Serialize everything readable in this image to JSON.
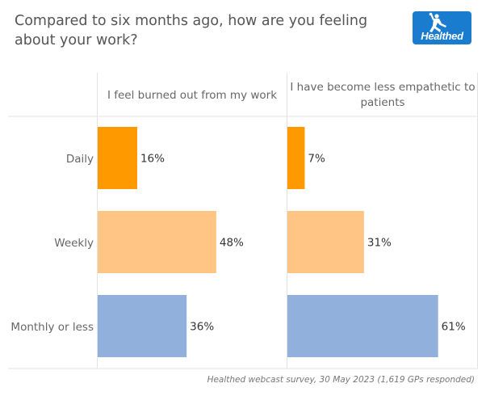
{
  "title": "Compared to six months ago, how are you feeling about your work?",
  "title_lines": [
    "Compared to six months ago, how are you feeling",
    "about your work?"
  ],
  "logo": {
    "text": "Healthed",
    "color": "#1a7ccf"
  },
  "footer": "Healthed webcast survey, 30 May 2023 (1,619 GPs responded)",
  "chart_data": {
    "type": "bar",
    "orientation": "horizontal",
    "title": "Compared to six months ago, how are you feeling about your work?",
    "categories": [
      "Daily",
      "Weekly",
      "Monthly or less"
    ],
    "category_colors": [
      "#ff9900",
      "#ffc585",
      "#92b0dc"
    ],
    "series": [
      {
        "name": "I feel burned out from my work",
        "header_lines": [
          "I feel burned out from my work"
        ],
        "values": [
          16,
          48,
          36
        ],
        "labels": [
          "16%",
          "48%",
          "36%"
        ]
      },
      {
        "name": "I have become less empathetic to patients",
        "header_lines": [
          "I have become less empathetic to",
          "patients"
        ],
        "values": [
          7,
          31,
          61
        ],
        "labels": [
          "7%",
          "31%",
          "61%"
        ]
      }
    ],
    "value_unit": "%",
    "xlim": [
      0,
      77
    ],
    "xlabel": "",
    "ylabel": "",
    "grid": false,
    "legend": "none"
  }
}
